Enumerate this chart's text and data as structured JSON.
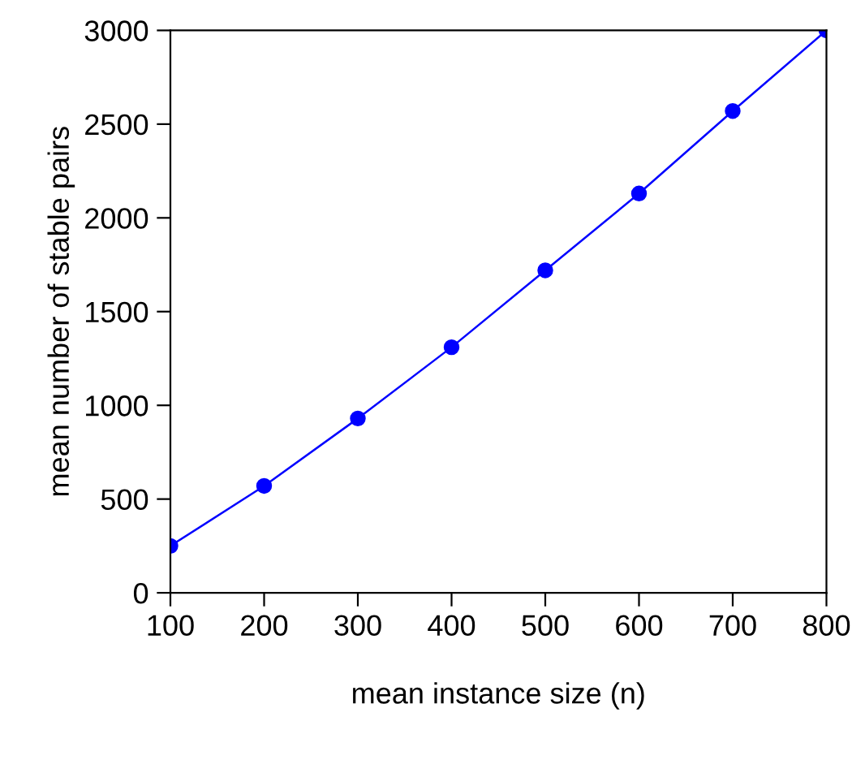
{
  "chart_data": {
    "type": "line",
    "xlabel": "mean instance size (n)",
    "ylabel": "mean number of stable pairs",
    "x": [
      100,
      200,
      300,
      400,
      500,
      600,
      700,
      800
    ],
    "series": [
      {
        "color": "#0000ff",
        "values": [
          250,
          570,
          930,
          1310,
          1720,
          2130,
          2570,
          3000
        ]
      }
    ],
    "xlim": [
      100,
      800
    ],
    "ylim": [
      0,
      3000
    ],
    "xticks": [
      100,
      200,
      300,
      400,
      500,
      600,
      700,
      800
    ],
    "yticks": [
      0,
      500,
      1000,
      1500,
      2000,
      2500,
      3000
    ],
    "marker": "circle",
    "line_style": "solid",
    "grid": false,
    "legend": false
  }
}
